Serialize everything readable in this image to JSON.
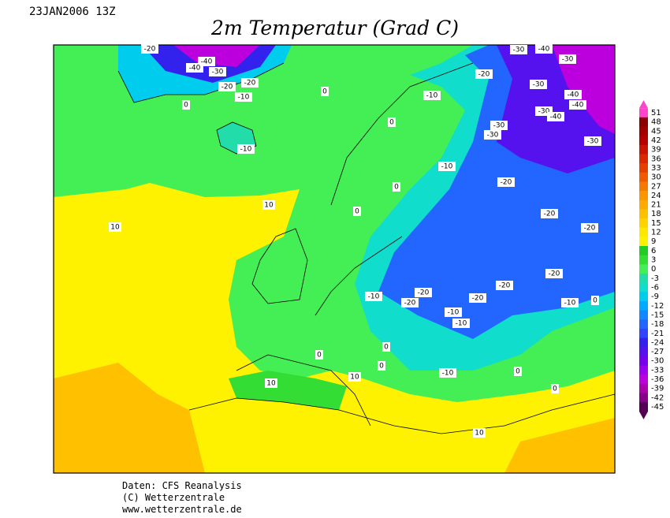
{
  "header": {
    "date": "23JAN2006 13Z",
    "title": "2m Temperatur (Grad C)"
  },
  "footer": [
    "Daten: CFS Reanalysis",
    "(C) Wetterzentrale",
    "www.wetterzentrale.de"
  ],
  "colorbar": {
    "ticks": [
      51,
      48,
      45,
      42,
      39,
      36,
      33,
      30,
      27,
      24,
      21,
      18,
      15,
      12,
      9,
      6,
      3,
      0,
      -3,
      -6,
      -9,
      -12,
      -15,
      -18,
      -21,
      -24,
      -27,
      -30,
      -33,
      -36,
      -39,
      -42,
      -45
    ],
    "colors": [
      "#ff44cc",
      "#8b0000",
      "#a00000",
      "#b40000",
      "#c81400",
      "#dc2800",
      "#e64000",
      "#f05a00",
      "#f57800",
      "#fa9600",
      "#ffaa00",
      "#ffc000",
      "#ffd400",
      "#ffe800",
      "#fff200",
      "#22cc22",
      "#33dd33",
      "#44ee55",
      "#22ddaa",
      "#11ddcc",
      "#00ccee",
      "#00aaff",
      "#1188ff",
      "#2266ff",
      "#3344ff",
      "#3322ee",
      "#5511ee",
      "#7700ee",
      "#9900ee",
      "#bb00dd",
      "#aa00aa",
      "#880088",
      "#550055"
    ]
  },
  "contour_labels": [
    -20,
    -40,
    -40,
    -30,
    -20,
    -20,
    -10,
    0,
    0,
    -10,
    0,
    -10,
    -20,
    -30,
    -40,
    -30,
    -30,
    -40,
    -40,
    -30,
    -40,
    -30,
    -30,
    -30,
    -10,
    -20,
    0,
    10,
    0,
    10,
    -20,
    -20,
    -20,
    -20,
    -10,
    -20,
    -20,
    -20,
    -10,
    -10,
    -10,
    0,
    0,
    0,
    0,
    -10,
    0,
    0,
    10,
    10,
    10
  ]
}
